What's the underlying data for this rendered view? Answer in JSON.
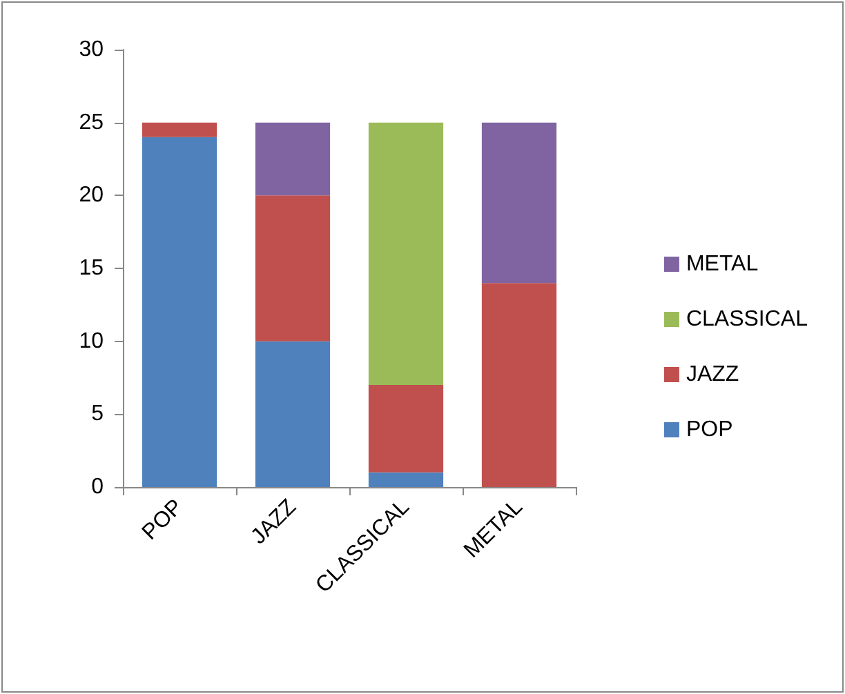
{
  "chart_data": {
    "type": "bar",
    "stacked": true,
    "categories": [
      "POP",
      "JAZZ",
      "CLASSICAL",
      "METAL"
    ],
    "series": [
      {
        "name": "POP",
        "color": "#4f81bd",
        "values": [
          24,
          10,
          1,
          0
        ]
      },
      {
        "name": "JAZZ",
        "color": "#c0504d",
        "values": [
          1,
          10,
          6,
          14
        ]
      },
      {
        "name": "CLASSICAL",
        "color": "#9bbb59",
        "values": [
          0,
          0,
          18,
          0
        ]
      },
      {
        "name": "METAL",
        "color": "#8064a2",
        "values": [
          0,
          5,
          0,
          11
        ]
      }
    ],
    "ylim": [
      0,
      30
    ],
    "yticks": [
      0,
      5,
      10,
      15,
      20,
      25,
      30
    ],
    "grid": false,
    "legend": "right"
  }
}
